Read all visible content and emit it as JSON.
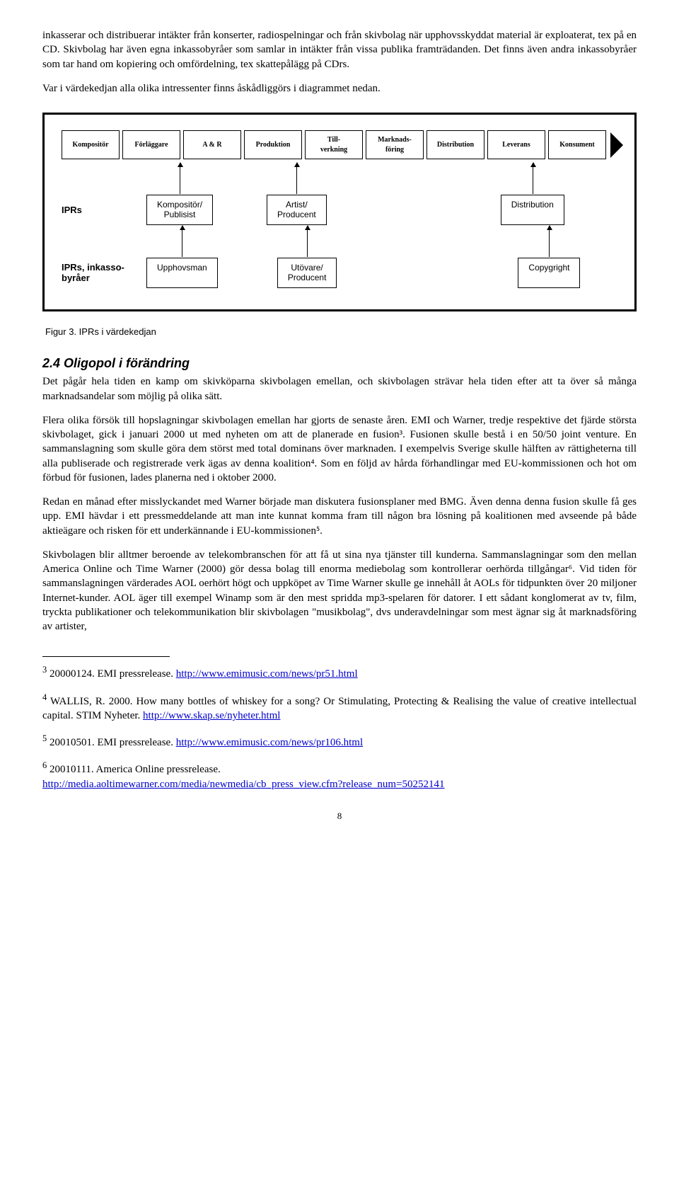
{
  "intro_paragraphs": [
    "inkasserar och distribuerar intäkter från konserter, radiospelningar och från skivbolag när upphovsskyddat material är exploaterat, tex på en CD. Skivbolag har även egna inkassobyråer som samlar in intäkter från vissa publika framträdanden. Det finns även andra inkassobyråer som tar hand om kopiering och omfördelning, tex skattepålägg på CDrs.",
    "Var i värdekedjan alla olika intressenter finns åskådliggörs i diagrammet nedan."
  ],
  "chain": [
    "Kompositör",
    "Förläggare",
    "A & R",
    "Produktion",
    "Till-\nverkning",
    "Marknads-\nföring",
    "Distribution",
    "Leverans",
    "Konsument"
  ],
  "row1_label": "IPRs",
  "row1_boxes": [
    "Kompositör/\nPublisist",
    "Artist/\nProducent",
    "Distribution"
  ],
  "row2_label": "IPRs, inkasso-\nbyråer",
  "row2_boxes": [
    "Upphovsman",
    "Utövare/\nProducent",
    "Copygright"
  ],
  "figure_caption": "Figur 3. IPRs i värdekedjan",
  "section_title": "2.4 Oligopol i förändring",
  "body_paragraphs": [
    "Det pågår hela tiden en kamp om skivköparna skivbolagen emellan, och skivbolagen strävar hela tiden efter att ta över så många marknadsandelar som möjlig på olika sätt.",
    "Flera olika försök till hopslagningar skivbolagen emellan har gjorts de senaste åren. EMI och Warner, tredje respektive det fjärde största skivbolaget, gick i januari 2000 ut med nyheten om att de planerade en fusion³. Fusionen skulle bestå i en 50/50 joint venture. En sammanslagning som skulle göra dem störst med total dominans över marknaden. I exempelvis Sverige skulle hälften av rättigheterna till alla publiserade och registrerade verk ägas av denna koalition⁴. Som en följd av hårda förhandlingar med EU-kommissionen och hot om förbud för fusionen, lades planerna ned i oktober 2000.",
    "Redan en månad efter misslyckandet med Warner började man diskutera fusionsplaner med BMG. Även denna denna fusion skulle få ges upp. EMI hävdar i ett pressmeddelande att man inte kunnat komma fram till någon bra lösning på koalitionen med avseende på både aktieägare och risken för ett underkännande i EU-kommissionen⁵.",
    "Skivbolagen blir alltmer beroende av telekombranschen för att få ut sina nya tjänster till kunderna. Sammanslagningar som den mellan America Online och Time Warner (2000) gör dessa bolag till enorma mediebolag som kontrollerar oerhörda tillgångar⁶. Vid tiden för sammanslagningen värderades AOL oerhört högt och uppköpet av Time Warner skulle ge innehåll åt AOLs för tidpunkten över 20 miljoner Internet-kunder. AOL äger till exempel Winamp som är den mest spridda mp3-spelaren för datorer.  I ett sådant konglomerat av tv, film, tryckta publikationer och telekommunikation blir skivbolagen \"musikbolag\", dvs underavdelningar som mest ägnar sig åt marknadsföring av artister,"
  ],
  "footnotes": [
    {
      "num": "3",
      "text": "20000124. EMI pressrelease. ",
      "link": "http://www.emimusic.com/news/pr51.html"
    },
    {
      "num": "4",
      "text_pre": "WALLIS, R. 2000. ",
      "italic": "How many bottles of whiskey for a song? Or Stimulating, Protecting & Realising the value of creative intellectual capital. STIM Nyheter.",
      "text_post": " ",
      "link": "http://www.skap.se/nyheter.html"
    },
    {
      "num": "5",
      "text": "20010501. EMI pressrelease. ",
      "link": "http://www.emimusic.com/news/pr106.html"
    },
    {
      "num": "6",
      "text": "20010111. America Online pressrelease.",
      "link": "http://media.aoltimewarner.com/media/newmedia/cb_press_view.cfm?release_num=50252141",
      "link_newline": true
    }
  ],
  "page_number": "8"
}
